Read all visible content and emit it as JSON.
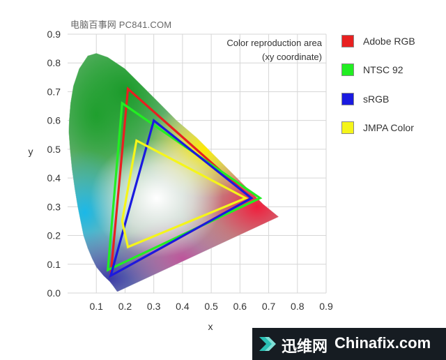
{
  "watermark": {
    "site": "电脑百事网 PC841.COM"
  },
  "chart_data": {
    "type": "line",
    "title": "",
    "annotation": [
      "Color reproduction area",
      "(xy coordinate)"
    ],
    "xlabel": "x",
    "ylabel": "y",
    "xlim": [
      0,
      0.9
    ],
    "ylim": [
      0,
      0.9
    ],
    "xticks": [
      "0.1",
      "0.2",
      "0.3",
      "0.4",
      "0.5",
      "0.6",
      "0.7",
      "0.8",
      "0.9"
    ],
    "yticks": [
      "0.0",
      "0.1",
      "0.2",
      "0.3",
      "0.4",
      "0.5",
      "0.6",
      "0.7",
      "0.8",
      "0.9"
    ],
    "grid": true,
    "legend_position": "right",
    "spectral_locus": [
      [
        0.175,
        0.005
      ],
      [
        0.172,
        0.005
      ],
      [
        0.17,
        0.008
      ],
      [
        0.165,
        0.015
      ],
      [
        0.158,
        0.025
      ],
      [
        0.146,
        0.04
      ],
      [
        0.125,
        0.06
      ],
      [
        0.1,
        0.09
      ],
      [
        0.085,
        0.12
      ],
      [
        0.07,
        0.155
      ],
      [
        0.055,
        0.2
      ],
      [
        0.045,
        0.25
      ],
      [
        0.035,
        0.3
      ],
      [
        0.025,
        0.36
      ],
      [
        0.015,
        0.43
      ],
      [
        0.008,
        0.5
      ],
      [
        0.004,
        0.56
      ],
      [
        0.005,
        0.6
      ],
      [
        0.01,
        0.66
      ],
      [
        0.02,
        0.72
      ],
      [
        0.04,
        0.78
      ],
      [
        0.07,
        0.825
      ],
      [
        0.1,
        0.834
      ],
      [
        0.14,
        0.82
      ],
      [
        0.2,
        0.78
      ],
      [
        0.26,
        0.72
      ],
      [
        0.32,
        0.66
      ],
      [
        0.38,
        0.6
      ],
      [
        0.45,
        0.54
      ],
      [
        0.51,
        0.48
      ],
      [
        0.57,
        0.42
      ],
      [
        0.63,
        0.36
      ],
      [
        0.68,
        0.31
      ],
      [
        0.735,
        0.265
      ]
    ],
    "series": [
      {
        "name": "Adobe RGB",
        "color": "#e82020",
        "points": [
          [
            0.64,
            0.33
          ],
          [
            0.21,
            0.71
          ],
          [
            0.15,
            0.06
          ]
        ]
      },
      {
        "name": "NTSC 92",
        "color": "#22ee22",
        "points": [
          [
            0.67,
            0.33
          ],
          [
            0.19,
            0.66
          ],
          [
            0.14,
            0.08
          ]
        ]
      },
      {
        "name": "sRGB",
        "color": "#1a1ae0",
        "points": [
          [
            0.64,
            0.33
          ],
          [
            0.3,
            0.6
          ],
          [
            0.15,
            0.06
          ]
        ]
      },
      {
        "name": "JMPA Color",
        "color": "#f5f51a",
        "points": [
          [
            0.62,
            0.33
          ],
          [
            0.24,
            0.53
          ],
          [
            0.19,
            0.25
          ],
          [
            0.21,
            0.16
          ]
        ]
      }
    ]
  },
  "footer": {
    "brand_cn": "迅维网",
    "brand_en": "Chinafix.com"
  }
}
